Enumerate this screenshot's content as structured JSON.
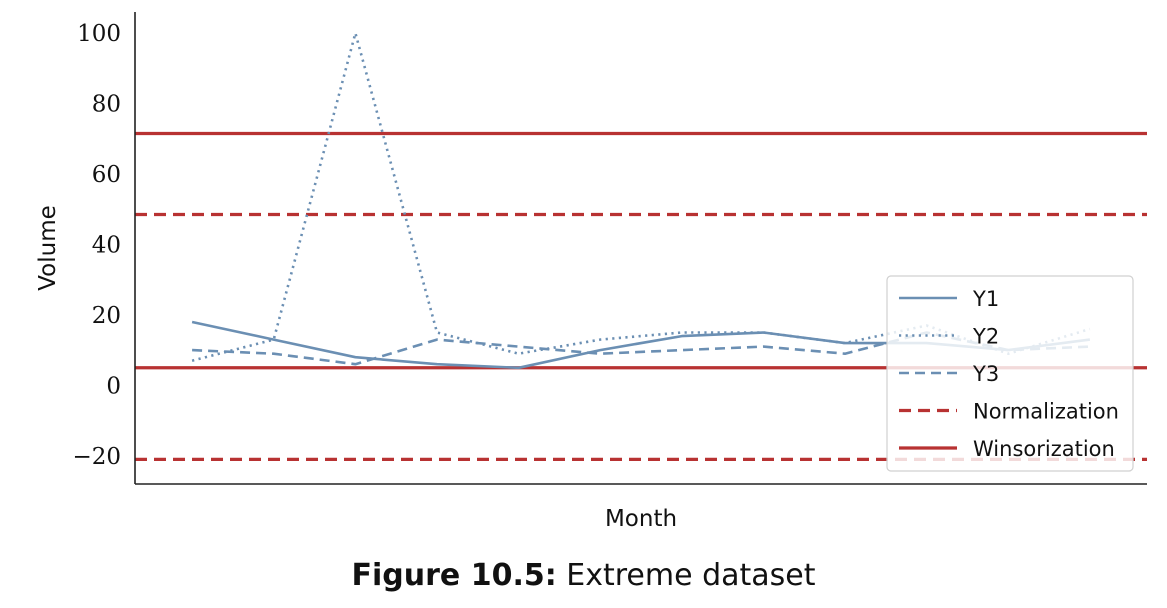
{
  "chart_data": {
    "type": "line",
    "xlabel": "Month",
    "ylabel": "Volume",
    "x": [
      1,
      2,
      3,
      4,
      5,
      6,
      7,
      8,
      9,
      10,
      11,
      12
    ],
    "xlim": [
      0.3,
      12.7
    ],
    "ylim": [
      -28,
      106
    ],
    "y_ticks": [
      -20,
      0,
      20,
      40,
      60,
      80,
      100
    ],
    "y_tick_labels": [
      "−20",
      "0",
      "20",
      "40",
      "60",
      "80",
      "100"
    ],
    "series": [
      {
        "name": "Y1",
        "style": "solid",
        "color": "#6b8fb3",
        "values": [
          18,
          13,
          8,
          6,
          5,
          10,
          14,
          15,
          12,
          12,
          10,
          13
        ]
      },
      {
        "name": "Y2",
        "style": "dotted",
        "color": "#6b8fb3",
        "values": [
          7,
          13,
          100,
          15,
          9,
          13,
          15,
          15,
          12,
          17,
          9,
          16
        ]
      },
      {
        "name": "Y3",
        "style": "dashed",
        "color": "#6b8fb3",
        "values": [
          10,
          9,
          6,
          13,
          11,
          9,
          10,
          11,
          9,
          15,
          10,
          11
        ]
      }
    ],
    "reference_lines": [
      {
        "name": "Normalization",
        "style": "dashed",
        "color": "#b83232",
        "values": [
          48.5,
          -21
        ]
      },
      {
        "name": "Winsorization",
        "style": "solid",
        "color": "#b83232",
        "values": [
          71.5,
          5
        ]
      }
    ],
    "legend_placement": "lower-right",
    "grid": false
  },
  "caption": {
    "label": "Figure 10.5:",
    "text": " Extreme dataset"
  }
}
